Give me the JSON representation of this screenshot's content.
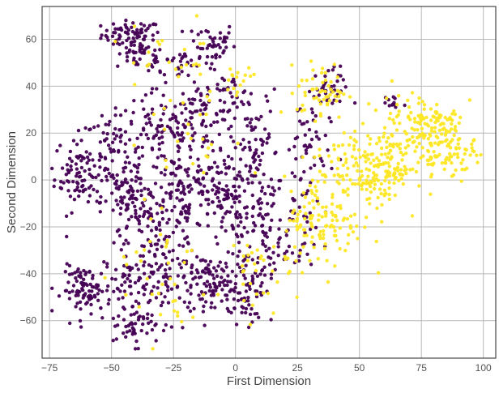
{
  "chart_data": {
    "type": "scatter",
    "title": "",
    "xlabel": "First Dimension",
    "ylabel": "Second Dimension",
    "xlim": [
      -78,
      105
    ],
    "ylim": [
      -76,
      74
    ],
    "xticks": [
      -75,
      -50,
      -25,
      0,
      25,
      50,
      75,
      100
    ],
    "yticks": [
      -60,
      -40,
      -20,
      0,
      20,
      40,
      60
    ],
    "grid": true,
    "legend": "none",
    "series": [
      {
        "color": "#440154",
        "clusters": [
          {
            "cx": -42,
            "cy": 62,
            "sx": 6,
            "sy": 3,
            "n": 70
          },
          {
            "cx": -38,
            "cy": 53,
            "sx": 5,
            "sy": 3,
            "n": 40
          },
          {
            "cx": -10,
            "cy": 58,
            "sx": 5,
            "sy": 5,
            "n": 45
          },
          {
            "cx": -22,
            "cy": 50,
            "sx": 6,
            "sy": 4,
            "n": 30
          },
          {
            "cx": -63,
            "cy": 3,
            "sx": 5,
            "sy": 8,
            "n": 90
          },
          {
            "cx": -50,
            "cy": 12,
            "sx": 6,
            "sy": 8,
            "n": 60
          },
          {
            "cx": -30,
            "cy": 22,
            "sx": 8,
            "sy": 8,
            "n": 90
          },
          {
            "cx": -12,
            "cy": 28,
            "sx": 6,
            "sy": 8,
            "n": 70
          },
          {
            "cx": -2,
            "cy": 35,
            "sx": 4,
            "sy": 5,
            "n": 25
          },
          {
            "cx": -42,
            "cy": -10,
            "sx": 6,
            "sy": 10,
            "n": 110
          },
          {
            "cx": -22,
            "cy": -5,
            "sx": 7,
            "sy": 10,
            "n": 120
          },
          {
            "cx": -5,
            "cy": -5,
            "sx": 5,
            "sy": 10,
            "n": 110
          },
          {
            "cx": 9,
            "cy": 12,
            "sx": 4,
            "sy": 13,
            "n": 70
          },
          {
            "cx": 10,
            "cy": -20,
            "sx": 5,
            "sy": 10,
            "n": 60
          },
          {
            "cx": -60,
            "cy": -47,
            "sx": 5,
            "sy": 5,
            "n": 90
          },
          {
            "cx": -43,
            "cy": -45,
            "sx": 5,
            "sy": 8,
            "n": 70
          },
          {
            "cx": -40,
            "cy": -63,
            "sx": 4,
            "sy": 4,
            "n": 40
          },
          {
            "cx": -28,
            "cy": -38,
            "sx": 6,
            "sy": 10,
            "n": 80
          },
          {
            "cx": -10,
            "cy": -45,
            "sx": 7,
            "sy": 8,
            "n": 110
          },
          {
            "cx": 5,
            "cy": -45,
            "sx": 5,
            "sy": 8,
            "n": 70
          },
          {
            "cx": 28,
            "cy": 12,
            "sx": 5,
            "sy": 12,
            "n": 55
          },
          {
            "cx": 37,
            "cy": 38,
            "sx": 4,
            "sy": 5,
            "n": 40
          },
          {
            "cx": 23,
            "cy": -25,
            "sx": 5,
            "sy": 8,
            "n": 40
          },
          {
            "cx": 62,
            "cy": 32,
            "sx": 3,
            "sy": 2,
            "n": 12
          }
        ]
      },
      {
        "color": "#fde725",
        "clusters": [
          {
            "cx": 35,
            "cy": 38,
            "sx": 5,
            "sy": 6,
            "n": 55
          },
          {
            "cx": 48,
            "cy": 5,
            "sx": 8,
            "sy": 9,
            "n": 100
          },
          {
            "cx": 35,
            "cy": -18,
            "sx": 8,
            "sy": 10,
            "n": 120
          },
          {
            "cx": 65,
            "cy": 15,
            "sx": 8,
            "sy": 8,
            "n": 100
          },
          {
            "cx": 85,
            "cy": 15,
            "sx": 6,
            "sy": 7,
            "n": 120
          },
          {
            "cx": 75,
            "cy": 28,
            "sx": 6,
            "sy": 4,
            "n": 45
          },
          {
            "cx": 60,
            "cy": 0,
            "sx": 5,
            "sy": 6,
            "n": 50
          },
          {
            "cx": 5,
            "cy": -40,
            "sx": 6,
            "sy": 10,
            "n": 30
          },
          {
            "cx": -30,
            "cy": -40,
            "sx": 10,
            "sy": 15,
            "n": 35
          },
          {
            "cx": -20,
            "cy": 20,
            "sx": 12,
            "sy": 15,
            "n": 30
          },
          {
            "cx": -30,
            "cy": 55,
            "sx": 10,
            "sy": 6,
            "n": 20
          },
          {
            "cx": 0,
            "cy": 40,
            "sx": 5,
            "sy": 4,
            "n": 15
          }
        ]
      }
    ]
  }
}
